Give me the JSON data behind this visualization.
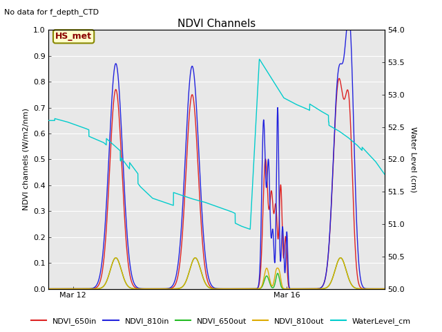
{
  "title": "NDVI Channels",
  "subtitle": "No data for f_depth_CTD",
  "ylabel_left": "NDVI channels (W/m2/nm)",
  "ylabel_right": "Water Level (cm)",
  "annotation": "HS_met",
  "ylim_left": [
    0.0,
    1.0
  ],
  "ylim_right": [
    50.0,
    54.0
  ],
  "yticks_left": [
    0.0,
    0.1,
    0.2,
    0.3,
    0.4,
    0.5,
    0.6,
    0.7,
    0.8,
    0.9,
    1.0
  ],
  "yticks_right_vals": [
    50.0,
    50.5,
    51.0,
    51.5,
    52.0,
    52.5,
    53.0,
    53.5,
    54.0
  ],
  "xtick_labels": [
    "Mar 12",
    "Mar 16"
  ],
  "bg_color": "#e8e8e8",
  "bg_color_light": "#f0f0f0",
  "fig_bg_color": "#ffffff",
  "grid_color": "#d8d8d8",
  "colors": {
    "NDVI_650in": "#dd2222",
    "NDVI_810in": "#2222dd",
    "NDVI_650out": "#22bb22",
    "NDVI_810out": "#ddaa00",
    "WaterLevel_cm": "#00cccc"
  },
  "legend_labels": [
    "NDVI_650in",
    "NDVI_810in",
    "NDVI_650out",
    "NDVI_810out",
    "WaterLevel_cm"
  ],
  "title_fontsize": 11,
  "label_fontsize": 8,
  "tick_fontsize": 8,
  "legend_fontsize": 8
}
